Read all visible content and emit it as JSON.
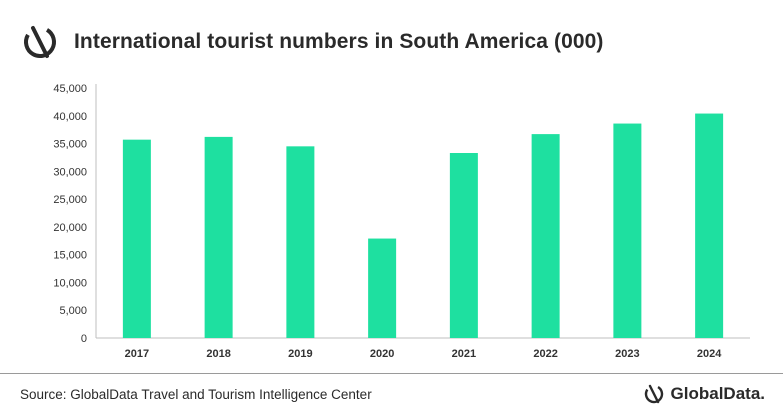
{
  "header": {
    "title": "International tourist numbers in South America (000)",
    "logo_icon": "globaldata-logo-icon"
  },
  "footer": {
    "source": "Source: GlobalData Travel and Tourism Intelligence Center",
    "brand_name": "GlobalData.",
    "brand_icon": "globaldata-mark-icon"
  },
  "colors": {
    "bar": "#1ee0a0",
    "axis": "#bfbfbf",
    "text": "#333333"
  },
  "chart_data": {
    "type": "bar",
    "title": "International tourist numbers in South America (000)",
    "categories": [
      "2017",
      "2018",
      "2019",
      "2020",
      "2021",
      "2022",
      "2023",
      "2024"
    ],
    "values": [
      35700,
      36200,
      34500,
      17900,
      33300,
      36700,
      38600,
      40400
    ],
    "ylim": [
      0,
      45000
    ],
    "yticks": [
      0,
      5000,
      10000,
      15000,
      20000,
      25000,
      30000,
      35000,
      40000,
      45000
    ],
    "ytick_labels": [
      "0",
      "5,000",
      "10,000",
      "15,000",
      "20,000",
      "25,000",
      "30,000",
      "35,000",
      "40,000",
      "45,000"
    ],
    "xlabel": "",
    "ylabel": "",
    "grid": false,
    "legend": "none"
  }
}
